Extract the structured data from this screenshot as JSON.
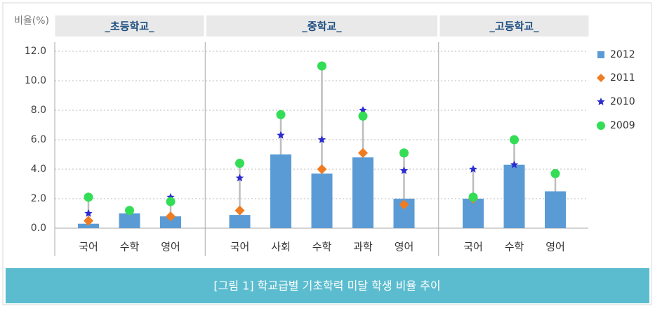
{
  "chart_data": {
    "type": "bar-dot",
    "y_label": "비율(%)",
    "caption": "[그림 1] 학교급별 기초학력 미달 학생 비율 추이",
    "groups": [
      {
        "label": "_초등학교_",
        "categories": [
          "국어",
          "수학",
          "영어"
        ]
      },
      {
        "label": "_중학교_",
        "categories": [
          "국어",
          "사회",
          "수학",
          "과학",
          "영어"
        ]
      },
      {
        "label": "_고등학교_",
        "categories": [
          "국어",
          "수학",
          "영어"
        ]
      }
    ],
    "series": [
      {
        "name": "2012",
        "color": "#5b9bd5",
        "marker": "bar",
        "values": [
          0.3,
          1.0,
          0.8,
          0.9,
          5.0,
          3.7,
          4.8,
          2.0,
          2.0,
          4.3,
          2.5
        ]
      },
      {
        "name": "2011",
        "color": "#f07c22",
        "marker": "diamond",
        "values": [
          0.5,
          null,
          0.8,
          1.2,
          null,
          4.0,
          5.1,
          1.6,
          2.0,
          null,
          null
        ]
      },
      {
        "name": "2010",
        "color": "#2b2bd0",
        "marker": "star",
        "values": [
          1.0,
          null,
          2.1,
          3.4,
          6.3,
          6.0,
          8.0,
          3.9,
          4.0,
          4.3,
          null
        ]
      },
      {
        "name": "2009",
        "color": "#33dd55",
        "marker": "circle",
        "values": [
          2.1,
          1.2,
          1.8,
          4.4,
          7.7,
          11.0,
          7.6,
          5.1,
          2.1,
          6.0,
          3.7
        ]
      }
    ],
    "ylim": [
      0,
      12
    ],
    "yticks": [
      {
        "value": 0,
        "label": "0.0"
      },
      {
        "value": 2,
        "label": "2.0"
      },
      {
        "value": 4,
        "label": "4.0"
      },
      {
        "value": 6,
        "label": "6.0"
      },
      {
        "value": 8,
        "label": "8.0"
      },
      {
        "value": 10,
        "label": "10.0"
      },
      {
        "value": 12,
        "label": "12.0"
      }
    ],
    "grid": true
  }
}
